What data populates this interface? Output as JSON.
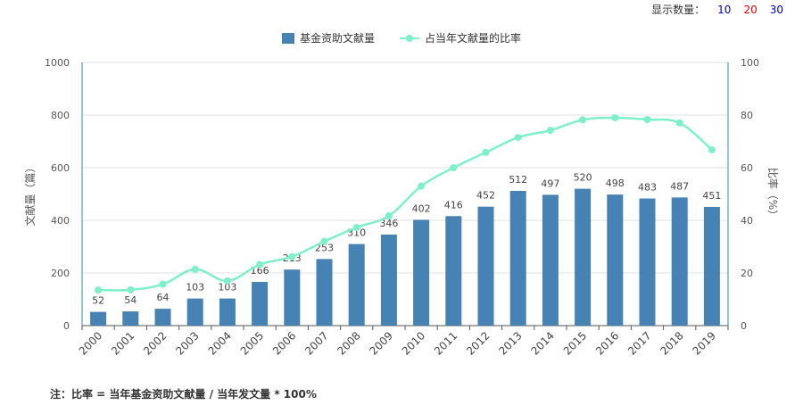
{
  "count_selector": {
    "label": "显示数量：",
    "options": [
      {
        "text": "10",
        "color": "#0000cc"
      },
      {
        "text": "20",
        "color": "#dd0000"
      },
      {
        "text": "30",
        "color": "#0000cc"
      }
    ]
  },
  "legend": {
    "bar_label": "基金资助文献量",
    "line_label": "占当年文献量的比率"
  },
  "note": "注：比率 = 当年基金资助文献量 / 当年发文量 * 100%",
  "colors": {
    "bar": "#4682b4",
    "line": "#7ef0c8",
    "axis": "#2a8fbd",
    "grid": "#e0e0e0"
  },
  "chart_data": {
    "type": "bar",
    "categories": [
      "2000",
      "2001",
      "2002",
      "2003",
      "2004",
      "2005",
      "2006",
      "2007",
      "2008",
      "2009",
      "2010",
      "2011",
      "2012",
      "2013",
      "2014",
      "2015",
      "2016",
      "2017",
      "2018",
      "2019"
    ],
    "series": [
      {
        "name": "基金资助文献量",
        "type": "bar",
        "axis": "left",
        "values": [
          52,
          54,
          64,
          103,
          103,
          166,
          213,
          253,
          310,
          346,
          402,
          416,
          452,
          512,
          497,
          520,
          498,
          483,
          487,
          451
        ]
      },
      {
        "name": "占当年文献量的比率",
        "type": "line",
        "axis": "right",
        "values": [
          13.5,
          13.6,
          15.7,
          21.4,
          17.0,
          23.2,
          26.2,
          32.0,
          37.3,
          41.7,
          53.0,
          60.0,
          65.8,
          71.5,
          74.2,
          78.2,
          79.0,
          78.3,
          77.0,
          66.8
        ]
      }
    ],
    "ylabel": "文献量（篇）",
    "y2label": "比率（%）",
    "ylim": [
      0,
      1000
    ],
    "y2lim": [
      0,
      100
    ],
    "yticks": [
      0,
      200,
      400,
      600,
      800,
      1000
    ],
    "y2ticks": [
      0,
      20,
      40,
      60,
      80,
      100
    ],
    "grid": true,
    "legend_position": "top-center"
  }
}
